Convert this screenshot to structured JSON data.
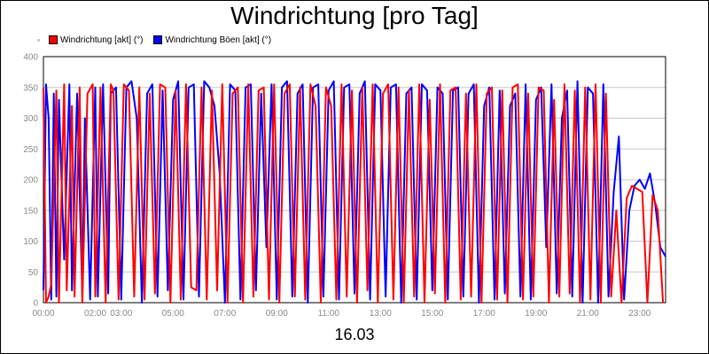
{
  "chart_data": {
    "type": "line",
    "title": "Windrichtung [pro Tag]",
    "xlabel": "16.03",
    "ylabel": "",
    "ylim": [
      0,
      400
    ],
    "yticks": [
      0,
      50,
      100,
      150,
      200,
      250,
      300,
      350,
      400
    ],
    "xlim": [
      0,
      24
    ],
    "xticks": [
      {
        "v": 0,
        "label": "00:00"
      },
      {
        "v": 2,
        "label": "02:00"
      },
      {
        "v": 3,
        "label": "03:00"
      },
      {
        "v": 5,
        "label": "05:00"
      },
      {
        "v": 7,
        "label": "07:00"
      },
      {
        "v": 9,
        "label": "09:00"
      },
      {
        "v": 11,
        "label": "11:00"
      },
      {
        "v": 13,
        "label": "13:00"
      },
      {
        "v": 15,
        "label": "15:00"
      },
      {
        "v": 17,
        "label": "17:00"
      },
      {
        "v": 19,
        "label": "19:00"
      },
      {
        "v": 21,
        "label": "21:00"
      },
      {
        "v": 23,
        "label": "23:00"
      }
    ],
    "grid": true,
    "legend_position": "top-left",
    "series": [
      {
        "name": "Windrichtung Böen [akt] (°)",
        "color": "#0000ff",
        "x": [
          0.0,
          0.1,
          0.2,
          0.3,
          0.4,
          0.5,
          0.6,
          0.8,
          1.0,
          1.1,
          1.3,
          1.5,
          1.6,
          1.8,
          2.0,
          2.1,
          2.3,
          2.5,
          2.6,
          2.8,
          3.0,
          3.2,
          3.4,
          3.6,
          3.8,
          4.0,
          4.2,
          4.4,
          4.6,
          4.8,
          5.0,
          5.2,
          5.4,
          5.6,
          5.8,
          6.0,
          6.2,
          6.4,
          6.6,
          6.8,
          7.0,
          7.2,
          7.4,
          7.6,
          7.8,
          8.0,
          8.2,
          8.4,
          8.6,
          8.8,
          9.0,
          9.2,
          9.4,
          9.6,
          9.8,
          10.0,
          10.2,
          10.4,
          10.6,
          10.8,
          11.0,
          11.2,
          11.4,
          11.6,
          11.8,
          12.0,
          12.2,
          12.4,
          12.6,
          12.8,
          13.0,
          13.2,
          13.4,
          13.6,
          13.8,
          14.0,
          14.2,
          14.4,
          14.6,
          14.8,
          15.0,
          15.2,
          15.4,
          15.6,
          15.8,
          16.0,
          16.2,
          16.4,
          16.6,
          16.8,
          17.0,
          17.2,
          17.4,
          17.6,
          17.8,
          18.0,
          18.2,
          18.4,
          18.6,
          18.8,
          19.0,
          19.2,
          19.4,
          19.6,
          19.8,
          20.0,
          20.2,
          20.4,
          20.6,
          20.8,
          21.0,
          21.2,
          21.4,
          21.6,
          21.8,
          22.0,
          22.2,
          22.4,
          22.6,
          22.8,
          23.0,
          23.2,
          23.4,
          23.6,
          23.8,
          24.0
        ],
        "values": [
          20,
          355,
          300,
          5,
          340,
          10,
          330,
          70,
          355,
          20,
          340,
          10,
          300,
          5,
          350,
          10,
          355,
          15,
          340,
          350,
          5,
          350,
          360,
          300,
          0,
          340,
          355,
          10,
          345,
          20,
          330,
          360,
          5,
          350,
          355,
          10,
          360,
          350,
          320,
          210,
          0,
          355,
          345,
          5,
          350,
          355,
          20,
          340,
          90,
          355,
          5,
          350,
          360,
          10,
          340,
          355,
          0,
          350,
          355,
          10,
          345,
          360,
          5,
          350,
          355,
          15,
          340,
          360,
          5,
          355,
          345,
          10,
          350,
          355,
          0,
          340,
          350,
          5,
          355,
          345,
          20,
          350,
          340,
          5,
          345,
          350,
          10,
          340,
          355,
          0,
          320,
          350,
          5,
          345,
          15,
          320,
          340,
          10,
          355,
          5,
          330,
          350,
          90,
          355,
          15,
          300,
          345,
          10,
          360,
          0,
          350,
          340,
          0,
          355,
          10,
          180,
          270,
          5,
          150,
          190,
          200,
          185,
          210,
          160,
          90,
          75
        ]
      },
      {
        "name": "Windrichtung [akt] (°)",
        "color": "#ff0000",
        "x": [
          0.0,
          0.1,
          0.2,
          0.3,
          0.5,
          0.6,
          0.8,
          0.9,
          1.1,
          1.2,
          1.4,
          1.5,
          1.7,
          1.9,
          2.0,
          2.2,
          2.4,
          2.6,
          2.7,
          2.9,
          3.1,
          3.3,
          3.5,
          3.7,
          3.9,
          4.1,
          4.3,
          4.5,
          4.7,
          4.9,
          5.1,
          5.3,
          5.5,
          5.7,
          5.9,
          6.1,
          6.3,
          6.5,
          6.7,
          6.9,
          7.1,
          7.3,
          7.5,
          7.7,
          7.9,
          8.1,
          8.3,
          8.5,
          8.7,
          8.9,
          9.1,
          9.3,
          9.5,
          9.7,
          9.9,
          10.1,
          10.3,
          10.5,
          10.7,
          10.9,
          11.1,
          11.3,
          11.5,
          11.7,
          11.9,
          12.1,
          12.3,
          12.5,
          12.7,
          12.9,
          13.1,
          13.3,
          13.5,
          13.7,
          13.9,
          14.1,
          14.3,
          14.5,
          14.7,
          14.9,
          15.1,
          15.3,
          15.5,
          15.7,
          15.9,
          16.1,
          16.3,
          16.5,
          16.7,
          16.9,
          17.1,
          17.3,
          17.5,
          17.7,
          17.9,
          18.1,
          18.3,
          18.5,
          18.7,
          18.9,
          19.1,
          19.3,
          19.5,
          19.7,
          19.9,
          20.1,
          20.3,
          20.5,
          20.7,
          20.9,
          21.1,
          21.3,
          21.5,
          21.7,
          21.9,
          22.1,
          22.3,
          22.5,
          22.7,
          22.9,
          23.1,
          23.3,
          23.5,
          23.7,
          23.9
        ],
        "values": [
          350,
          0,
          10,
          30,
          345,
          0,
          355,
          20,
          320,
          10,
          350,
          0,
          340,
          355,
          10,
          350,
          0,
          355,
          345,
          5,
          355,
          345,
          10,
          350,
          5,
          340,
          15,
          355,
          350,
          0,
          345,
          5,
          355,
          25,
          20,
          350,
          5,
          345,
          20,
          355,
          0,
          340,
          350,
          0,
          355,
          10,
          345,
          350,
          5,
          355,
          0,
          340,
          355,
          10,
          350,
          5,
          355,
          320,
          0,
          350,
          320,
          5,
          355,
          10,
          345,
          0,
          350,
          20,
          355,
          0,
          340,
          355,
          5,
          350,
          0,
          345,
          10,
          355,
          0,
          330,
          15,
          355,
          0,
          345,
          350,
          5,
          340,
          10,
          355,
          0,
          340,
          350,
          5,
          345,
          0,
          350,
          355,
          5,
          340,
          10,
          350,
          345,
          0,
          330,
          10,
          355,
          15,
          345,
          0,
          350,
          5,
          355,
          0,
          340,
          10,
          150,
          0,
          170,
          190,
          185,
          180,
          0,
          175,
          150,
          0
        ]
      }
    ]
  }
}
